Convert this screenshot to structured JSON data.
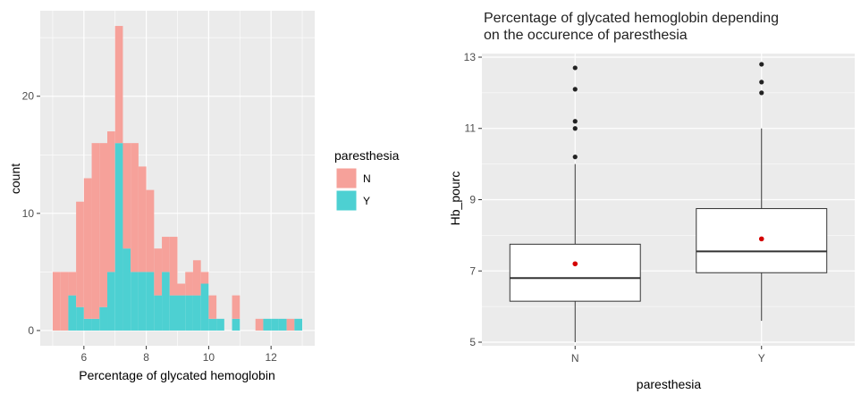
{
  "chart_data": [
    {
      "type": "bar",
      "subtype": "stacked-histogram",
      "title": "",
      "xlabel": "Percentage of glycated hemoglobin",
      "ylabel": "count",
      "xlim": [
        4.6,
        13.4
      ],
      "ylim": [
        -1.3,
        27.3
      ],
      "xticks": [
        6,
        8,
        10,
        12
      ],
      "yticks": [
        0,
        10,
        20
      ],
      "bin_width": 0.25,
      "bin_starts": [
        5.0,
        5.25,
        5.5,
        5.75,
        6.0,
        6.25,
        6.5,
        6.75,
        7.0,
        7.25,
        7.5,
        7.75,
        8.0,
        8.25,
        8.5,
        8.75,
        9.0,
        9.25,
        9.5,
        9.75,
        10.0,
        10.25,
        10.5,
        10.75,
        11.0,
        11.25,
        11.5,
        11.75,
        12.0,
        12.25,
        12.5,
        12.75
      ],
      "legend": {
        "title": "paresthesia",
        "position": "right"
      },
      "series": [
        {
          "name": "Y",
          "color": "#4dd0d2",
          "values": [
            0,
            0,
            3,
            2,
            1,
            1,
            2,
            5,
            16,
            7,
            5,
            5,
            5,
            3,
            5,
            3,
            3,
            3,
            3,
            4,
            1,
            1,
            0,
            1,
            0,
            0,
            0,
            1,
            1,
            1,
            0,
            1
          ]
        },
        {
          "name": "N",
          "color": "#f6a19a",
          "values": [
            5,
            5,
            2,
            9,
            12,
            15,
            14,
            12,
            10,
            9,
            11,
            9,
            7,
            4,
            3,
            5,
            1,
            2,
            3,
            1,
            2,
            0,
            0,
            2,
            0,
            0,
            1,
            0,
            0,
            0,
            1,
            0
          ]
        }
      ],
      "grid": true
    },
    {
      "type": "boxplot",
      "title": "Percentage of glycated hemoglobin depending\non the occurence of paresthesia",
      "xlabel": "paresthesia",
      "ylabel": "Hb_pourc",
      "ylim": [
        4.9,
        13.1
      ],
      "yticks": [
        5,
        7,
        9,
        11,
        13
      ],
      "categories": [
        "N",
        "Y"
      ],
      "boxes": [
        {
          "category": "N",
          "whisker_low": 5.0,
          "q1": 6.15,
          "median": 6.8,
          "q3": 7.75,
          "whisker_high": 10.0,
          "mean": 7.2,
          "outliers": [
            10.2,
            11.0,
            11.2,
            12.1,
            12.7
          ]
        },
        {
          "category": "Y",
          "whisker_low": 5.6,
          "q1": 6.95,
          "median": 7.55,
          "q3": 8.75,
          "whisker_high": 11.0,
          "mean": 7.9,
          "outliers": [
            12.0,
            12.3,
            12.8
          ]
        }
      ],
      "mean_color": "#d40000",
      "grid": true
    }
  ]
}
